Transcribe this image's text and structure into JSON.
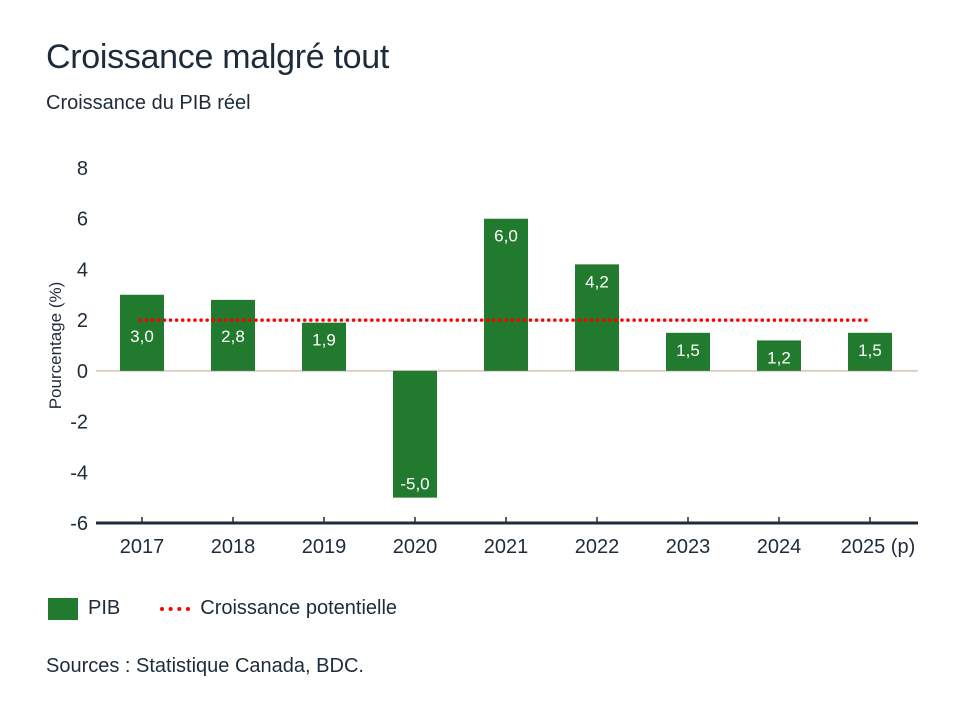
{
  "title": "Croissance malgré tout",
  "subtitle": "Croissance du PIB réel",
  "source": "Sources : Statistique Canada, BDC.",
  "colors": {
    "bar": "#217a2e",
    "line": "#ff0000",
    "axis": "#1d2b3a",
    "zero": "#d9d0c8"
  },
  "chart_data": {
    "type": "bar",
    "title": "Croissance malgré tout",
    "subtitle": "Croissance du PIB réel",
    "ylabel": "Pourcentage (%)",
    "xlabel": "",
    "ylim": [
      -6,
      8
    ],
    "yticks": [
      "8",
      "6",
      "4",
      "2",
      "0",
      "-2",
      "-4",
      "-6"
    ],
    "categories": [
      "2017",
      "2018",
      "2019",
      "2020",
      "2021",
      "2022",
      "2023",
      "2024",
      "2025"
    ],
    "category_suffix": "(p)",
    "series": [
      {
        "name": "PIB",
        "type": "bar",
        "values": [
          3.0,
          2.8,
          1.9,
          -5.0,
          6.0,
          4.2,
          1.5,
          1.2,
          1.5
        ],
        "labels": [
          "3,0",
          "2,8",
          "1,9",
          "-5,0",
          "6,0",
          "4,2",
          "1,5",
          "1,2",
          "1,5"
        ]
      },
      {
        "name": "Croissance potentielle",
        "type": "line",
        "style": "dotted",
        "values": [
          2,
          2,
          2,
          2,
          2,
          2,
          2,
          2,
          2
        ]
      }
    ],
    "grid": false,
    "legend": "bottom-left"
  }
}
